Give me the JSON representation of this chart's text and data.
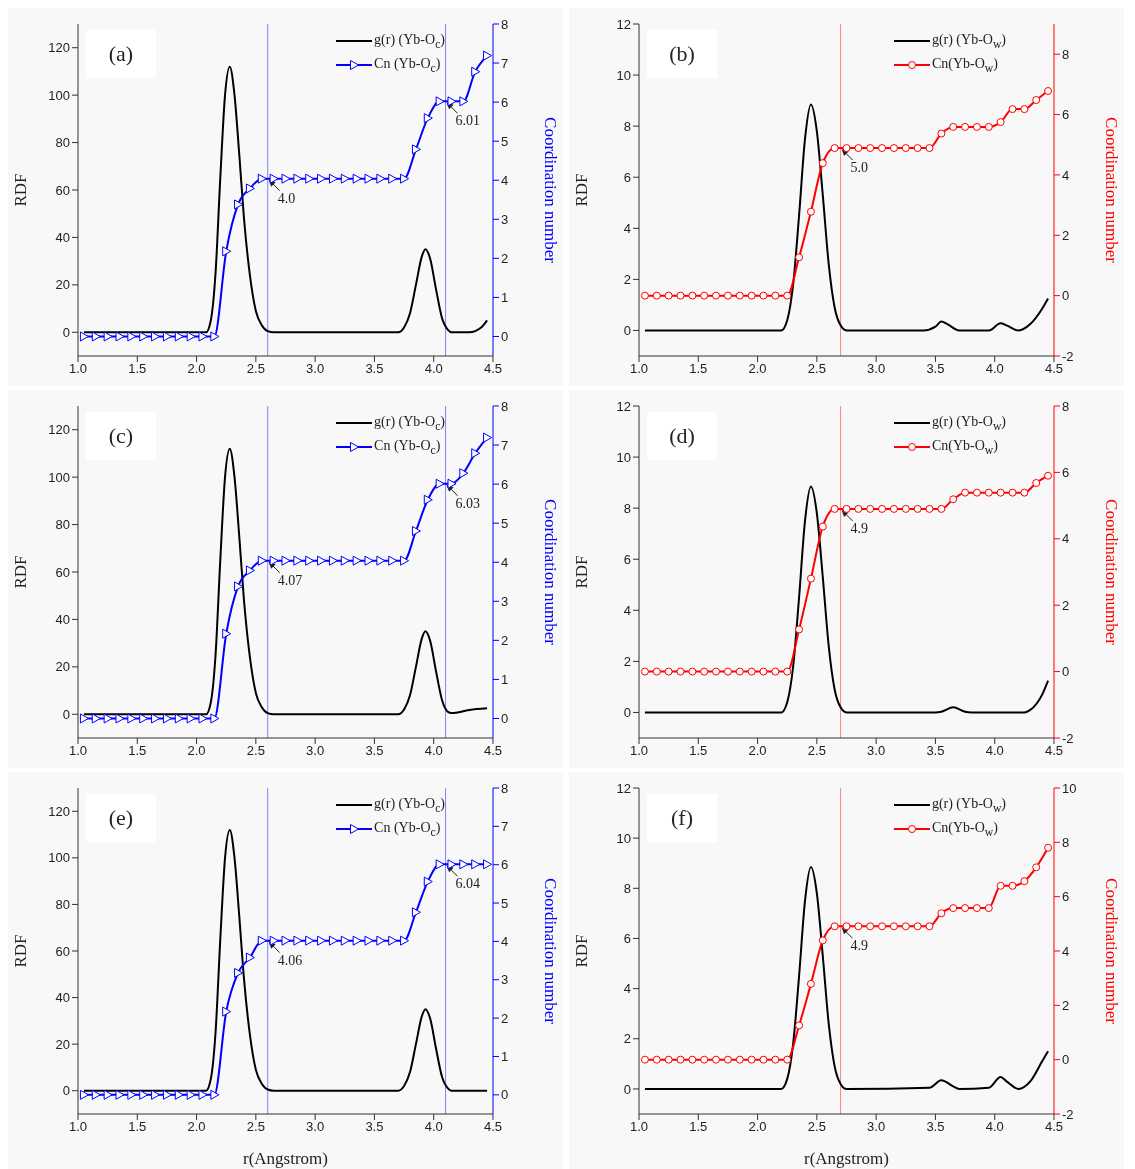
{
  "chart_data": [
    {
      "type": "line",
      "xlabel": null,
      "ylabel": "RDF",
      "y2label": "Coordination number",
      "xlim": [
        1.0,
        4.5
      ],
      "xticks": [
        {
          "value": 1,
          "label": "1.0"
        },
        1.5,
        {
          "value": 2,
          "label": "2.0"
        },
        2.5,
        {
          "value": 3,
          "label": "3.0"
        },
        3.5,
        {
          "value": 4,
          "label": "4.0"
        },
        4.5
      ],
      "ylim": [
        -10,
        130
      ],
      "yticks": [
        0,
        20,
        40,
        60,
        80,
        100,
        120
      ],
      "y2lim": [
        -0.5,
        8
      ],
      "y2ticks": [
        0,
        1,
        2,
        3,
        4,
        5,
        6,
        7,
        8
      ],
      "legend": "top right",
      "annotations": [
        "(a)",
        "4.0",
        "6.01"
      ],
      "ref_lines": [
        {
          "axis": "x",
          "value": 2.6,
          "color": "#8080ff"
        },
        {
          "axis": "x",
          "value": 4.1,
          "color": "#8080ff"
        }
      ],
      "series": [
        {
          "name": "g(r) (Yb-O$_{c}$)",
          "color": "#000000",
          "marker": "none",
          "x": [
            1.05,
            2.08,
            2.12,
            2.16,
            2.2,
            2.24,
            2.28,
            2.32,
            2.36,
            2.4,
            2.45,
            2.5,
            2.55,
            2.6,
            2.65,
            3.7,
            3.75,
            3.8,
            3.85,
            3.9,
            3.93,
            3.97,
            4.02,
            4.07,
            4.12,
            4.15,
            4.3,
            4.4,
            4.45
          ],
          "values": [
            0,
            0,
            5,
            25,
            65,
            100,
            112,
            100,
            75,
            48,
            24,
            9,
            3,
            0.5,
            0,
            0,
            2,
            8,
            20,
            32,
            35,
            31,
            18,
            6,
            1,
            0,
            0,
            2,
            5
          ]
        },
        {
          "name": "Cn (Yb-O$_{c}$)",
          "color": "#0000ff",
          "marker": "triangle",
          "axis": "y2",
          "x": [
            1.05,
            1.15,
            1.25,
            1.35,
            1.45,
            1.55,
            1.65,
            1.75,
            1.85,
            1.95,
            2.05,
            2.15,
            2.25,
            2.35,
            2.45,
            2.55,
            2.65,
            2.75,
            2.85,
            2.95,
            3.05,
            3.15,
            3.25,
            3.35,
            3.45,
            3.55,
            3.65,
            3.75,
            3.85,
            3.95,
            4.05,
            4.15,
            4.25,
            4.35,
            4.45
          ],
          "values": [
            0,
            0,
            0,
            0,
            0,
            0,
            0,
            0,
            0,
            0,
            0,
            0,
            2.18,
            3.38,
            3.79,
            4.04,
            4.04,
            4.04,
            4.04,
            4.04,
            4.04,
            4.04,
            4.04,
            4.04,
            4.04,
            4.04,
            4.04,
            4.04,
            4.79,
            5.59,
            6.02,
            6.02,
            6.02,
            6.78,
            7.19
          ]
        }
      ]
    },
    {
      "type": "line",
      "xlabel": null,
      "ylabel": "RDF",
      "y2label": "Coordination number",
      "xlim": [
        1.0,
        4.5
      ],
      "xticks": [
        {
          "value": 1,
          "label": "1.0"
        },
        1.5,
        {
          "value": 2,
          "label": "2.0"
        },
        2.5,
        {
          "value": 3,
          "label": "3.0"
        },
        3.5,
        {
          "value": 4,
          "label": "4.0"
        },
        4.5
      ],
      "ylim": [
        -1,
        12
      ],
      "yticks": [
        0,
        2,
        4,
        6,
        8,
        10,
        12
      ],
      "y2lim": [
        -2,
        9
      ],
      "y2ticks": [
        -2,
        0,
        2,
        4,
        6,
        8
      ],
      "legend": "top right",
      "annotations": [
        "(b)",
        "5.0"
      ],
      "ref_lines": [
        {
          "axis": "x",
          "value": 2.7,
          "color": "#ff8080"
        }
      ],
      "series": [
        {
          "name": "g(r) (Yb-O$_{w}$)",
          "color": "#000000",
          "marker": "none",
          "x": [
            1.05,
            2.2,
            2.25,
            2.3,
            2.35,
            2.4,
            2.45,
            2.5,
            2.55,
            2.6,
            2.65,
            2.7,
            2.75,
            3.4,
            3.5,
            3.55,
            3.6,
            3.7,
            3.95,
            4.05,
            4.1,
            4.2,
            4.3,
            4.4,
            4.45
          ],
          "values": [
            0,
            0,
            0.4,
            1.8,
            4.5,
            7.5,
            8.85,
            7.8,
            5.3,
            2.6,
            0.9,
            0.2,
            0,
            0,
            0.15,
            0.35,
            0.25,
            0,
            0,
            0.28,
            0.2,
            0,
            0.25,
            0.85,
            1.25
          ]
        },
        {
          "name": "Cn(Yb-O$_{w}$)",
          "color": "#ff0000",
          "marker": "circle",
          "axis": "y2",
          "x": [
            1.05,
            1.15,
            1.25,
            1.35,
            1.45,
            1.55,
            1.65,
            1.75,
            1.85,
            1.95,
            2.05,
            2.15,
            2.25,
            2.35,
            2.45,
            2.55,
            2.65,
            2.75,
            2.85,
            2.95,
            3.05,
            3.15,
            3.25,
            3.35,
            3.45,
            3.55,
            3.65,
            3.75,
            3.85,
            3.95,
            4.05,
            4.15,
            4.25,
            4.35,
            4.45
          ],
          "values": [
            0,
            0,
            0,
            0,
            0,
            0,
            0,
            0,
            0,
            0,
            0,
            0,
            0,
            1.27,
            2.78,
            4.39,
            4.89,
            4.89,
            4.89,
            4.89,
            4.89,
            4.89,
            4.89,
            4.89,
            4.89,
            5.37,
            5.59,
            5.59,
            5.59,
            5.59,
            5.75,
            6.18,
            6.18,
            6.48,
            6.78
          ]
        }
      ]
    },
    {
      "type": "line",
      "xlabel": null,
      "ylabel": "RDF",
      "y2label": "Coordination number",
      "xlim": [
        1.0,
        4.5
      ],
      "xticks": [
        {
          "value": 1,
          "label": "1.0"
        },
        1.5,
        {
          "value": 2,
          "label": "2.0"
        },
        2.5,
        {
          "value": 3,
          "label": "3.0"
        },
        3.5,
        {
          "value": 4,
          "label": "4.0"
        },
        4.5
      ],
      "ylim": [
        -10,
        130
      ],
      "yticks": [
        0,
        20,
        40,
        60,
        80,
        100,
        120
      ],
      "y2lim": [
        -0.5,
        8
      ],
      "y2ticks": [
        0,
        1,
        2,
        3,
        4,
        5,
        6,
        7,
        8
      ],
      "legend": "top right",
      "annotations": [
        "(c)",
        "4.07",
        "6.03"
      ],
      "ref_lines": [
        {
          "axis": "x",
          "value": 2.6,
          "color": "#8080ff"
        },
        {
          "axis": "x",
          "value": 4.1,
          "color": "#8080ff"
        }
      ],
      "series": [
        {
          "name": "g(r) (Yb-O$_{c}$)",
          "color": "#000000",
          "marker": "none",
          "x": [
            1.05,
            2.08,
            2.12,
            2.16,
            2.2,
            2.24,
            2.28,
            2.32,
            2.36,
            2.4,
            2.45,
            2.5,
            2.55,
            2.6,
            2.65,
            3.7,
            3.75,
            3.8,
            3.85,
            3.9,
            3.93,
            3.97,
            4.02,
            4.07,
            4.12,
            4.15,
            4.3,
            4.45
          ],
          "values": [
            0,
            0,
            5,
            25,
            65,
            100,
            112,
            100,
            75,
            48,
            24,
            9,
            3,
            0.5,
            0,
            0,
            2,
            8,
            20,
            32,
            35,
            31,
            18,
            6,
            1,
            0.5,
            1.8,
            2.5
          ]
        },
        {
          "name": "Cn (Yb-O$_{c}$)",
          "color": "#0000ff",
          "marker": "triangle",
          "axis": "y2",
          "x": [
            1.05,
            1.15,
            1.25,
            1.35,
            1.45,
            1.55,
            1.65,
            1.75,
            1.85,
            1.95,
            2.05,
            2.15,
            2.25,
            2.35,
            2.45,
            2.55,
            2.65,
            2.75,
            2.85,
            2.95,
            3.05,
            3.15,
            3.25,
            3.35,
            3.45,
            3.55,
            3.65,
            3.75,
            3.85,
            3.95,
            4.05,
            4.15,
            4.25,
            4.35,
            4.45
          ],
          "values": [
            0,
            0,
            0,
            0,
            0,
            0,
            0,
            0,
            0,
            0,
            0,
            0,
            2.17,
            3.38,
            3.79,
            4.04,
            4.04,
            4.04,
            4.04,
            4.04,
            4.04,
            4.04,
            4.04,
            4.04,
            4.04,
            4.04,
            4.04,
            4.04,
            4.8,
            5.6,
            6.01,
            6.01,
            6.28,
            6.79,
            7.19
          ]
        }
      ]
    },
    {
      "type": "line",
      "xlabel": null,
      "ylabel": "RDF",
      "y2label": "Coordination number",
      "xlim": [
        1.0,
        4.5
      ],
      "xticks": [
        {
          "value": 1,
          "label": "1.0"
        },
        1.5,
        {
          "value": 2,
          "label": "2.0"
        },
        2.5,
        {
          "value": 3,
          "label": "3.0"
        },
        3.5,
        {
          "value": 4,
          "label": "4.0"
        },
        4.5
      ],
      "ylim": [
        -1,
        12
      ],
      "yticks": [
        0,
        2,
        4,
        6,
        8,
        10,
        12
      ],
      "y2lim": [
        -2,
        8
      ],
      "y2ticks": [
        -2,
        0,
        2,
        4,
        6,
        8
      ],
      "legend": "top right",
      "annotations": [
        "(d)",
        "4.9"
      ],
      "ref_lines": [
        {
          "axis": "x",
          "value": 2.7,
          "color": "#ff8080"
        }
      ],
      "series": [
        {
          "name": "g(r) (Yb-O$_{w}$)",
          "color": "#000000",
          "marker": "none",
          "x": [
            1.05,
            2.2,
            2.25,
            2.3,
            2.35,
            2.4,
            2.45,
            2.5,
            2.55,
            2.6,
            2.65,
            2.7,
            2.75,
            3.5,
            3.55,
            3.65,
            3.75,
            3.8,
            4.25,
            4.3,
            4.4,
            4.45
          ],
          "values": [
            0,
            0,
            0.4,
            1.8,
            4.5,
            7.5,
            8.85,
            7.8,
            5.3,
            2.6,
            0.9,
            0.2,
            0,
            0,
            0.03,
            0.2,
            0.03,
            0,
            0,
            0.1,
            0.7,
            1.25
          ]
        },
        {
          "name": "Cn(Yb-O$_{w}$)",
          "color": "#ff0000",
          "marker": "circle",
          "axis": "y2",
          "x": [
            1.05,
            1.15,
            1.25,
            1.35,
            1.45,
            1.55,
            1.65,
            1.75,
            1.85,
            1.95,
            2.05,
            2.15,
            2.25,
            2.35,
            2.45,
            2.55,
            2.65,
            2.75,
            2.85,
            2.95,
            3.05,
            3.15,
            3.25,
            3.35,
            3.45,
            3.55,
            3.65,
            3.75,
            3.85,
            3.95,
            4.05,
            4.15,
            4.25,
            4.35,
            4.45
          ],
          "values": [
            0,
            0,
            0,
            0,
            0,
            0,
            0,
            0,
            0,
            0,
            0,
            0,
            0,
            1.27,
            2.8,
            4.37,
            4.9,
            4.9,
            4.9,
            4.9,
            4.9,
            4.9,
            4.9,
            4.9,
            4.9,
            4.9,
            5.19,
            5.39,
            5.39,
            5.39,
            5.39,
            5.39,
            5.39,
            5.68,
            5.9
          ]
        }
      ]
    },
    {
      "type": "line",
      "xlabel": "r(Angstrom)",
      "ylabel": "RDF",
      "y2label": "Coordination number",
      "xlim": [
        1.0,
        4.5
      ],
      "xticks": [
        {
          "value": 1,
          "label": "1.0"
        },
        1.5,
        {
          "value": 2,
          "label": "2.0"
        },
        2.5,
        {
          "value": 3,
          "label": "3.0"
        },
        3.5,
        {
          "value": 4,
          "label": "4.0"
        },
        4.5
      ],
      "ylim": [
        -10,
        130
      ],
      "yticks": [
        0,
        20,
        40,
        60,
        80,
        100,
        120
      ],
      "y2lim": [
        -0.5,
        8
      ],
      "y2ticks": [
        0,
        1,
        2,
        3,
        4,
        5,
        6,
        7,
        8
      ],
      "legend": "top right",
      "annotations": [
        "(e)",
        "4.06",
        "6.04"
      ],
      "ref_lines": [
        {
          "axis": "x",
          "value": 2.6,
          "color": "#8080ff"
        },
        {
          "axis": "x",
          "value": 4.1,
          "color": "#8080ff"
        }
      ],
      "series": [
        {
          "name": "g(r) (Yb-O$_{c}$)",
          "color": "#000000",
          "marker": "none",
          "x": [
            1.05,
            2.08,
            2.12,
            2.16,
            2.2,
            2.24,
            2.28,
            2.32,
            2.36,
            2.4,
            2.45,
            2.5,
            2.55,
            2.6,
            2.65,
            3.7,
            3.75,
            3.8,
            3.85,
            3.9,
            3.93,
            3.97,
            4.02,
            4.07,
            4.12,
            4.15,
            4.45
          ],
          "values": [
            0,
            0,
            5,
            25,
            65,
            100,
            112,
            100,
            75,
            48,
            24,
            9,
            3,
            0.5,
            0,
            0,
            2,
            8,
            20,
            32,
            35,
            31,
            18,
            6,
            1,
            0,
            0
          ]
        },
        {
          "name": "Cn (Yb-O$_{c}$)",
          "color": "#0000ff",
          "marker": "triangle",
          "axis": "y2",
          "x": [
            1.05,
            1.15,
            1.25,
            1.35,
            1.45,
            1.55,
            1.65,
            1.75,
            1.85,
            1.95,
            2.05,
            2.15,
            2.25,
            2.35,
            2.45,
            2.55,
            2.65,
            2.75,
            2.85,
            2.95,
            3.05,
            3.15,
            3.25,
            3.35,
            3.45,
            3.55,
            3.65,
            3.75,
            3.85,
            3.95,
            4.05,
            4.15,
            4.25,
            4.35,
            4.45
          ],
          "values": [
            0,
            0,
            0,
            0,
            0,
            0,
            0,
            0,
            0,
            0,
            0,
            0,
            2.17,
            3.18,
            3.58,
            4.02,
            4.02,
            4.02,
            4.02,
            4.02,
            4.02,
            4.02,
            4.02,
            4.02,
            4.02,
            4.02,
            4.02,
            4.02,
            4.76,
            5.56,
            6.01,
            6.01,
            6.01,
            6.01,
            6.01
          ]
        }
      ]
    },
    {
      "type": "line",
      "xlabel": "r(Angstrom)",
      "ylabel": "RDF",
      "y2label": "Coordination number",
      "xlim": [
        1.0,
        4.5
      ],
      "xticks": [
        {
          "value": 1,
          "label": "1.0"
        },
        1.5,
        {
          "value": 2,
          "label": "2.0"
        },
        2.5,
        {
          "value": 3,
          "label": "3.0"
        },
        3.5,
        {
          "value": 4,
          "label": "4.0"
        },
        4.5
      ],
      "ylim": [
        -1,
        12
      ],
      "yticks": [
        0,
        2,
        4,
        6,
        8,
        10,
        12
      ],
      "y2lim": [
        -2,
        10
      ],
      "y2ticks": [
        -2,
        0,
        2,
        4,
        6,
        8,
        10
      ],
      "legend": "top right",
      "annotations": [
        "(f)",
        "4.9"
      ],
      "ref_lines": [
        {
          "axis": "x",
          "value": 2.7,
          "color": "#ff8080"
        }
      ],
      "series": [
        {
          "name": "g(r) (Yb-O$_{w}$)",
          "color": "#000000",
          "marker": "none",
          "x": [
            1.05,
            2.2,
            2.25,
            2.3,
            2.35,
            2.4,
            2.45,
            2.5,
            2.55,
            2.6,
            2.65,
            2.7,
            2.75,
            3.45,
            3.55,
            3.65,
            3.7,
            3.95,
            4.05,
            4.1,
            4.2,
            4.3,
            4.4,
            4.45
          ],
          "values": [
            0,
            0,
            0.4,
            1.8,
            4.5,
            7.5,
            8.85,
            7.8,
            5.3,
            2.6,
            0.9,
            0.2,
            0,
            0.05,
            0.35,
            0.1,
            0,
            0.05,
            0.48,
            0.3,
            0,
            0.3,
            1.1,
            1.5
          ]
        },
        {
          "name": "Cn(Yb-O$_{w}$)",
          "color": "#ff0000",
          "marker": "circle",
          "axis": "y2",
          "x": [
            1.05,
            1.15,
            1.25,
            1.35,
            1.45,
            1.55,
            1.65,
            1.75,
            1.85,
            1.95,
            2.05,
            2.15,
            2.25,
            2.35,
            2.45,
            2.55,
            2.65,
            2.75,
            2.85,
            2.95,
            3.05,
            3.15,
            3.25,
            3.35,
            3.45,
            3.55,
            3.65,
            3.75,
            3.85,
            3.95,
            4.05,
            4.15,
            4.25,
            4.35,
            4.45
          ],
          "values": [
            0,
            0,
            0,
            0,
            0,
            0,
            0,
            0,
            0,
            0,
            0,
            0,
            0,
            1.26,
            2.79,
            4.39,
            4.91,
            4.91,
            4.91,
            4.91,
            4.91,
            4.91,
            4.91,
            4.91,
            4.91,
            5.39,
            5.58,
            5.58,
            5.58,
            5.58,
            6.4,
            6.4,
            6.57,
            7.08,
            7.8
          ]
        }
      ]
    }
  ]
}
